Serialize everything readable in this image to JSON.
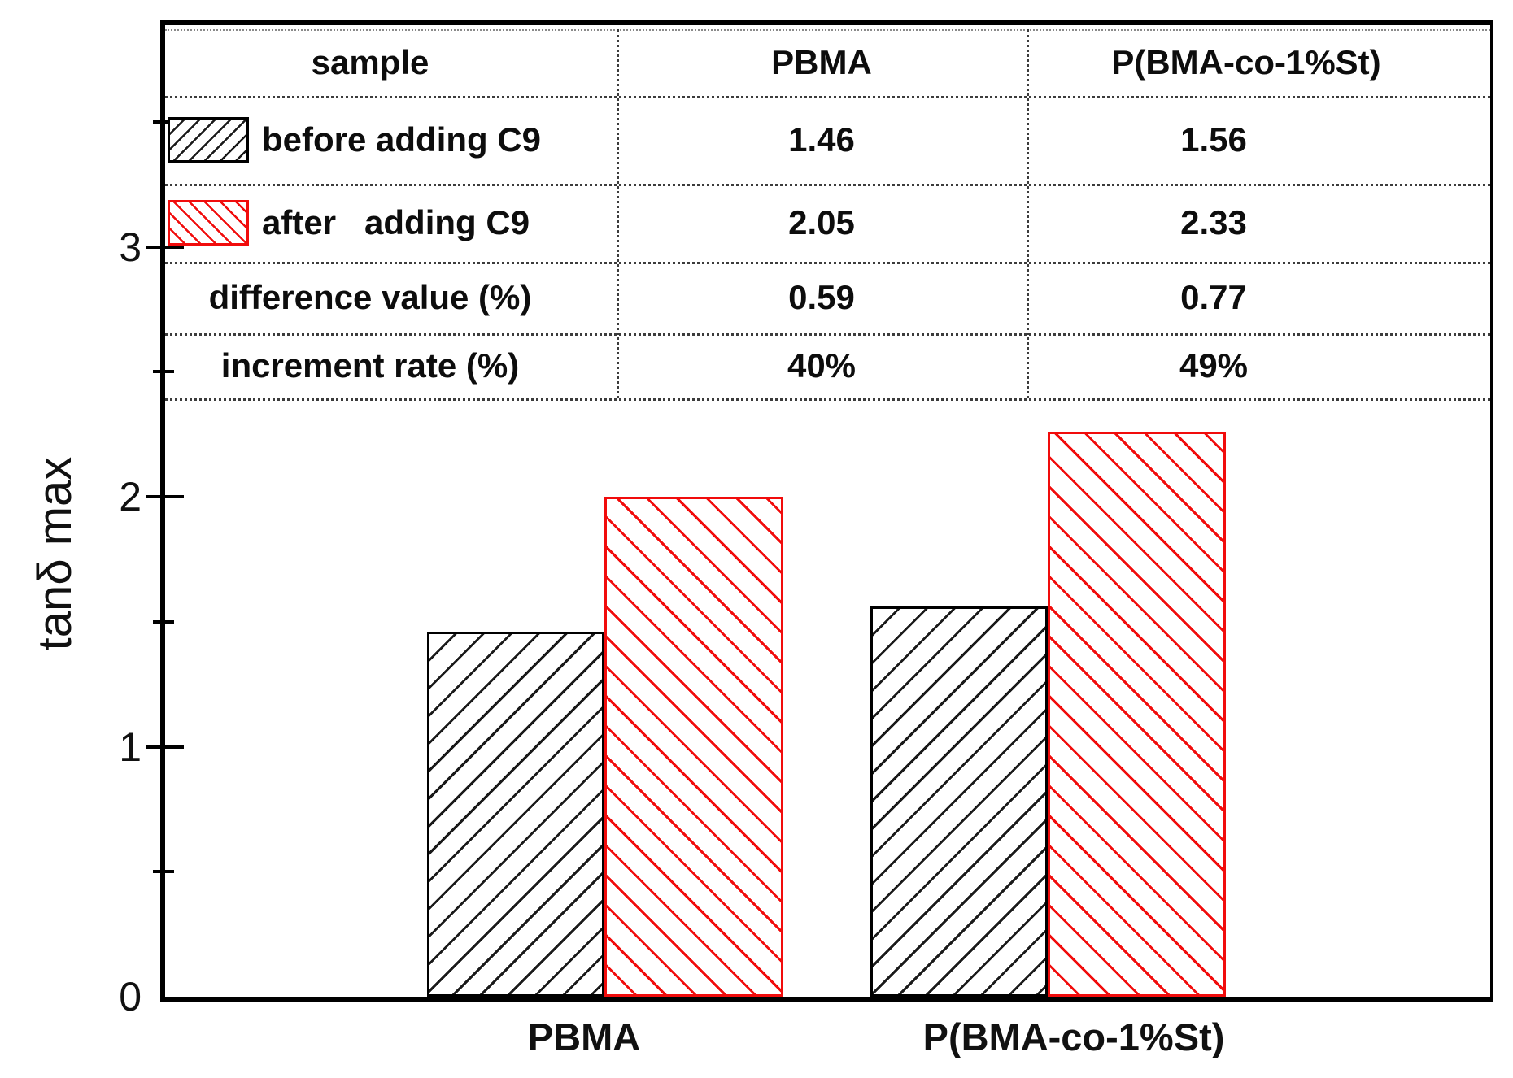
{
  "axis": {
    "y_title": "tanδ max",
    "y_tick_labels": [
      "0",
      "1",
      "2",
      "3"
    ],
    "x_labels": [
      "PBMA",
      "P(BMA-co-1%St)"
    ]
  },
  "chart_data": {
    "type": "bar",
    "title": "",
    "xlabel": "",
    "ylabel": "tanδ max",
    "categories": [
      "PBMA",
      "P(BMA-co-1%St)"
    ],
    "series": [
      {
        "name": "before adding C9",
        "values": [
          1.46,
          1.56
        ],
        "drawn_values": [
          1.46,
          1.56
        ],
        "color": "#000000",
        "hatch": "/"
      },
      {
        "name": "after adding C9",
        "values": [
          2.05,
          2.33
        ],
        "drawn_values": [
          2.0,
          2.26
        ],
        "color": "#f10c0c",
        "hatch": "\\"
      }
    ],
    "ylim": [
      0,
      3.9
    ],
    "yticks": [
      0,
      1,
      2,
      3
    ],
    "minor_yticks": [
      0.5,
      1.5,
      2.5,
      3.5
    ],
    "grid": false,
    "legend_position": "inside-table-rows"
  },
  "table": {
    "header_row": {
      "label": "sample",
      "col1": "PBMA",
      "col2": "P(BMA-co-1%St)"
    },
    "rows": [
      {
        "label": "before adding C9",
        "swatch": "black-hatch-legend",
        "col1": "1.46",
        "col2": "1.56"
      },
      {
        "label": "after   adding C9",
        "swatch": "red-hatch-legend",
        "col1": "2.05",
        "col2": "2.33"
      },
      {
        "label": "difference value (%)",
        "col1": "0.59",
        "col2": "0.77"
      },
      {
        "label": "increment rate (%)",
        "col1": "40%",
        "col2": "49%"
      }
    ]
  },
  "colors": {
    "bar_before": "#000000",
    "bar_after": "#f10c0c",
    "background": "#ffffff"
  }
}
